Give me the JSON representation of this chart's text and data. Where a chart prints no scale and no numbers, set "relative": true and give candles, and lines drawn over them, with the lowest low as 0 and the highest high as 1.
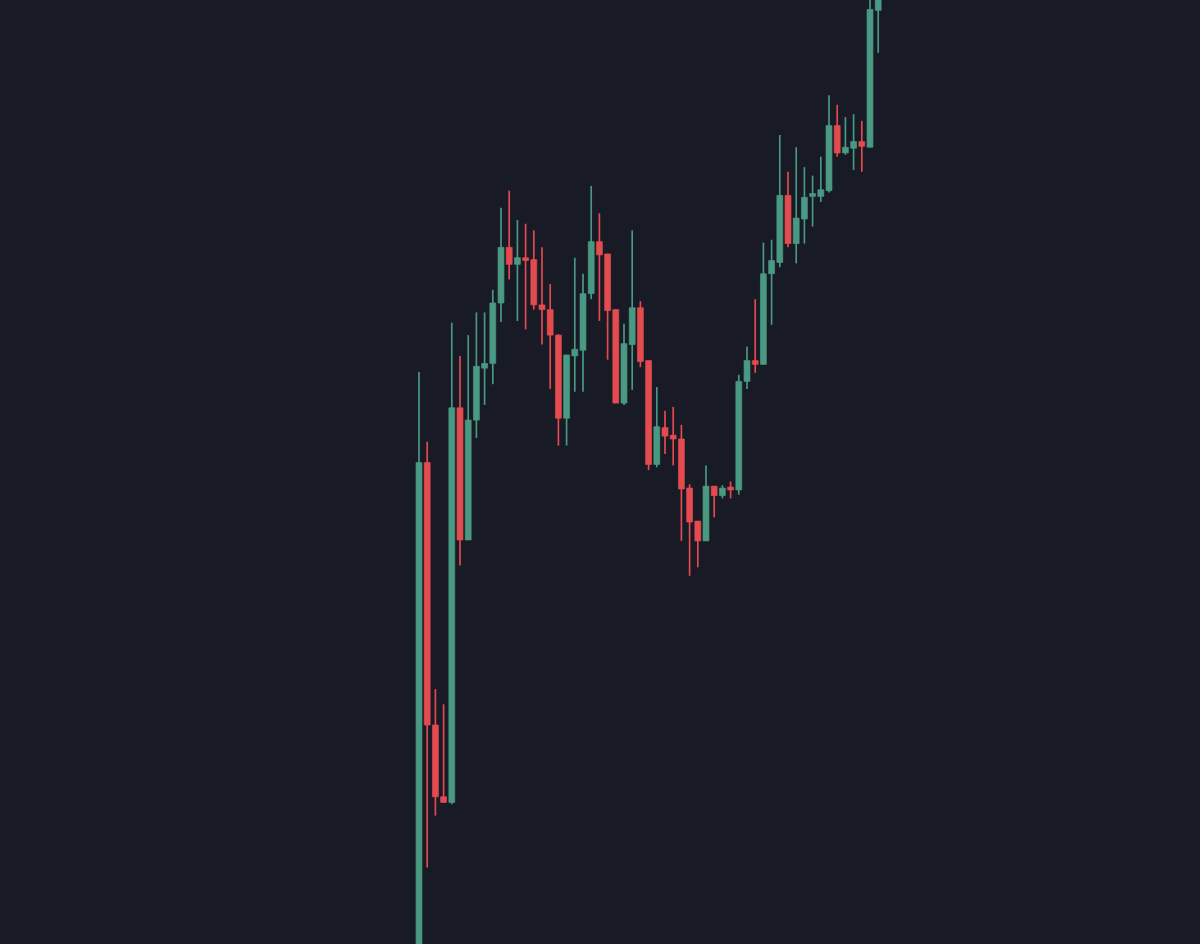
{
  "chart_data": {
    "type": "candlestick",
    "relative": true,
    "categories": [
      null,
      null,
      null,
      null,
      null,
      null,
      null,
      null,
      null,
      null,
      null,
      null,
      null,
      null,
      null,
      null,
      null,
      null,
      null,
      null,
      null,
      null,
      null,
      null,
      null,
      null,
      null,
      null,
      null,
      null,
      null,
      null,
      null,
      null,
      null,
      null,
      null,
      null,
      null,
      null,
      null,
      null,
      null,
      null,
      null,
      null,
      null,
      null,
      null,
      null,
      null,
      null,
      null,
      null,
      null,
      null,
      null
    ],
    "ohlc": [
      [
        0,
        0.606,
        0,
        0.51
      ],
      [
        0.51,
        0.532,
        0.081,
        0.232
      ],
      [
        0.232,
        0.27,
        0.136,
        0.156
      ],
      [
        0.156,
        0.254,
        0.15,
        0.15
      ],
      [
        0.15,
        0.658,
        0.148,
        0.568
      ],
      [
        0.568,
        0.623,
        0.401,
        0.428
      ],
      [
        0.428,
        0.645,
        0.428,
        0.555
      ],
      [
        0.555,
        0.669,
        0.536,
        0.612
      ],
      [
        0.61,
        0.669,
        0.571,
        0.615
      ],
      [
        0.615,
        0.693,
        0.593,
        0.679
      ],
      [
        0.679,
        0.78,
        0.659,
        0.738
      ],
      [
        0.738,
        0.798,
        0.704,
        0.72
      ],
      [
        0.72,
        0.767,
        0.66,
        0.727
      ],
      [
        0.727,
        0.763,
        0.651,
        0.724
      ],
      [
        0.725,
        0.756,
        0.672,
        0.677
      ],
      [
        0.677,
        0.738,
        0.635,
        0.672
      ],
      [
        0.672,
        0.699,
        0.588,
        0.645
      ],
      [
        0.645,
        0.646,
        0.528,
        0.557
      ],
      [
        0.557,
        0.624,
        0.528,
        0.624
      ],
      [
        0.623,
        0.727,
        0.585,
        0.63
      ],
      [
        0.629,
        0.71,
        0.585,
        0.689
      ],
      [
        0.689,
        0.803,
        0.683,
        0.744
      ],
      [
        0.744,
        0.774,
        0.66,
        0.73
      ],
      [
        0.731,
        0.731,
        0.619,
        0.671
      ],
      [
        0.672,
        0.672,
        0.573,
        0.573
      ],
      [
        0.573,
        0.657,
        0.571,
        0.636
      ],
      [
        0.635,
        0.756,
        0.587,
        0.674
      ],
      [
        0.674,
        0.681,
        0.611,
        0.617
      ],
      [
        0.618,
        0.618,
        0.502,
        0.508
      ],
      [
        0.508,
        0.59,
        0.505,
        0.548
      ],
      [
        0.547,
        0.565,
        0.519,
        0.538
      ],
      [
        0.539,
        0.569,
        0.507,
        0.535
      ],
      [
        0.535,
        0.55,
        0.427,
        0.482
      ],
      [
        0.483,
        0.487,
        0.39,
        0.447
      ],
      [
        0.448,
        0.448,
        0.399,
        0.427
      ],
      [
        0.427,
        0.507,
        0.427,
        0.485
      ],
      [
        0.485,
        0.485,
        0.452,
        0.475
      ],
      [
        0.475,
        0.486,
        0.472,
        0.483
      ],
      [
        0.483,
        0.49,
        0.472,
        0.481
      ],
      [
        0.481,
        0.603,
        0.476,
        0.596
      ],
      [
        0.596,
        0.633,
        0.588,
        0.618
      ],
      [
        0.618,
        0.683,
        0.605,
        0.614
      ],
      [
        0.614,
        0.743,
        0.614,
        0.71
      ],
      [
        0.71,
        0.746,
        0.656,
        0.724
      ],
      [
        0.722,
        0.857,
        0.717,
        0.793
      ],
      [
        0.793,
        0.818,
        0.738,
        0.742
      ],
      [
        0.742,
        0.844,
        0.721,
        0.769
      ],
      [
        0.768,
        0.823,
        0.742,
        0.791
      ],
      [
        0.792,
        0.814,
        0.76,
        0.794
      ],
      [
        0.792,
        0.834,
        0.786,
        0.799
      ],
      [
        0.798,
        0.899,
        0.796,
        0.867
      ],
      [
        0.867,
        0.889,
        0.834,
        0.838
      ],
      [
        0.838,
        0.876,
        0.836,
        0.844
      ],
      [
        0.843,
        0.879,
        0.82,
        0.85
      ],
      [
        0.85,
        0.872,
        0.818,
        0.845
      ],
      [
        0.844,
        1,
        0.844,
        0.99
      ],
      [
        0.989,
        1,
        0.944,
        1
      ]
    ]
  }
}
